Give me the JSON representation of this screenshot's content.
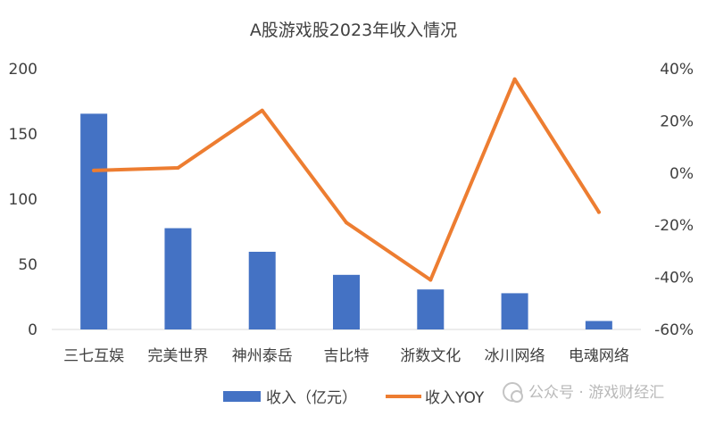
{
  "chart_data": {
    "type": "bar",
    "title": "A股游戏股2023年收入情况",
    "categories": [
      "三七互娱",
      "完美世界",
      "神州泰岳",
      "吉比特",
      "浙数文化",
      "冰川网络",
      "电魂网络"
    ],
    "series": [
      {
        "name": "收入（亿元）",
        "type": "bar",
        "axis": "left",
        "color": "#4472C4",
        "values": [
          165.5,
          77.7,
          59.6,
          41.9,
          30.7,
          27.8,
          6.5
        ]
      },
      {
        "name": "收入YOY",
        "type": "line",
        "axis": "right",
        "color": "#ED7D31",
        "values": [
          0.01,
          0.02,
          0.24,
          -0.19,
          -0.41,
          0.36,
          -0.15
        ]
      }
    ],
    "y_left": {
      "min": 0,
      "max": 200,
      "ticks": [
        "0",
        "50",
        "100",
        "150",
        "200"
      ]
    },
    "y_right": {
      "min": -0.6,
      "max": 0.4,
      "ticks": [
        "-60%",
        "-40%",
        "-20%",
        "0%",
        "20%",
        "40%"
      ]
    },
    "grid": false,
    "legend": "bottom"
  },
  "watermark": {
    "text": "公众号 · 游戏财经汇"
  }
}
